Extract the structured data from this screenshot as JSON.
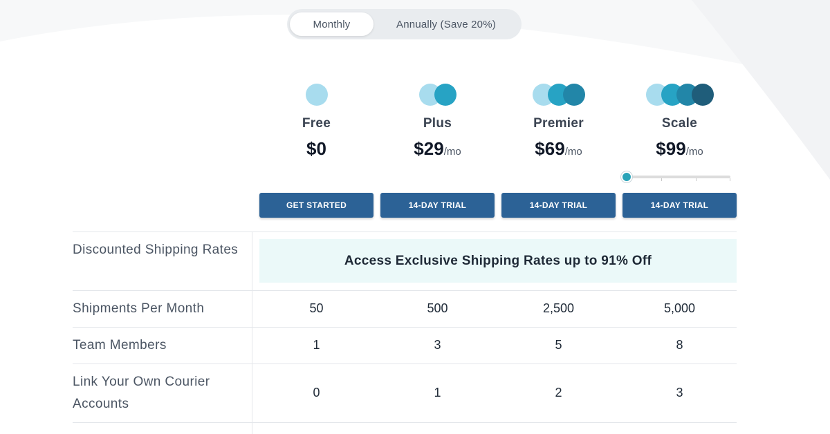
{
  "billing_toggle": {
    "monthly_label": "Monthly",
    "annual_label": "Annually (Save 20%)",
    "selected": "Monthly"
  },
  "plans": [
    {
      "name": "Free",
      "price": "$0",
      "per": "",
      "cta": "GET STARTED",
      "dots": [
        "#a8dcee"
      ]
    },
    {
      "name": "Plus",
      "price": "$29",
      "per": "/mo",
      "cta": "14-DAY TRIAL",
      "dots": [
        "#a8dcee",
        "#27a3c4"
      ]
    },
    {
      "name": "Premier",
      "price": "$69",
      "per": "/mo",
      "cta": "14-DAY TRIAL",
      "dots": [
        "#a8dcee",
        "#27a3c4",
        "#2286a8"
      ]
    },
    {
      "name": "Scale",
      "price": "$99",
      "per": "/mo",
      "cta": "14-DAY TRIAL",
      "dots": [
        "#a8dcee",
        "#27a3c4",
        "#2286a8",
        "#1f5d7a"
      ]
    }
  ],
  "scale_slider": {
    "level": 0,
    "steps": 4
  },
  "features": [
    {
      "label": "Discounted Shipping Rates",
      "highlight": "Access Exclusive Shipping Rates up to 91% Off"
    },
    {
      "label": "Shipments Per Month",
      "values": [
        "50",
        "500",
        "2,500",
        "5,000"
      ]
    },
    {
      "label": "Team Members",
      "values": [
        "1",
        "3",
        "5",
        "8"
      ]
    },
    {
      "label": "Link Your Own Courier Accounts",
      "values": [
        "0",
        "1",
        "2",
        "3"
      ]
    }
  ],
  "colors": {
    "cta_button": "#2c6296",
    "highlight_bg": "#ebf9f9",
    "slider_thumb": "#29a3b8"
  }
}
